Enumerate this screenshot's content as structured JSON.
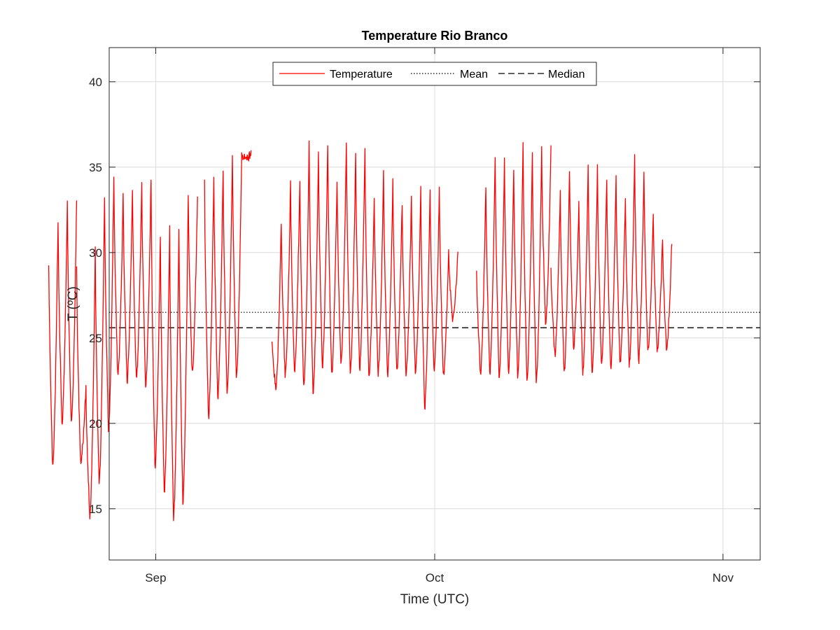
{
  "chart_data": {
    "type": "line",
    "title": "Temperature Rio Branco",
    "xlabel": "Time (UTC)",
    "ylabel": "T (ºC)",
    "x_unit": "date",
    "xlim": [
      "2015-08-27",
      "2015-11-05"
    ],
    "ylim": [
      12,
      42
    ],
    "x_ticks": [
      {
        "date": "2015-09-01",
        "label": "Sep"
      },
      {
        "date": "2015-10-01",
        "label": "Oct"
      },
      {
        "date": "2015-11-01",
        "label": "Nov"
      }
    ],
    "y_ticks": [
      15,
      20,
      25,
      30,
      35,
      40
    ],
    "grid": true,
    "legend": {
      "position": "top-center",
      "orientation": "horizontal",
      "entries": [
        "Temperature",
        "Mean",
        "Median"
      ]
    },
    "reference_lines": [
      {
        "name": "Mean",
        "value": 26.5,
        "style": "dotted",
        "color": "#000000"
      },
      {
        "name": "Median",
        "value": 25.6,
        "style": "dashed",
        "color": "#000000"
      }
    ],
    "series": [
      {
        "name": "Temperature",
        "color": "#ff0000",
        "segments": [
          {
            "start": "2015-08-20T12:00",
            "daily": [
              [
                29.5,
                17.3
              ],
              [
                32.0,
                19.9
              ],
              [
                33.0,
                19.9
              ]
            ]
          },
          {
            "start": "2015-08-23T12:00",
            "daily": [
              [
                29.0,
                17.7
              ],
              [
                22.0,
                14.4
              ],
              [
                30.3,
                16.4
              ],
              [
                33.3,
                19.6
              ],
              [
                34.5,
                22.7
              ],
              [
                33.4,
                22.4
              ],
              [
                33.8,
                22.5
              ],
              [
                34.0,
                22.3
              ],
              [
                34.4,
                17.4
              ],
              [
                31.0,
                16.0
              ],
              [
                31.5,
                14.4
              ],
              [
                31.6,
                15.3
              ],
              [
                33.5,
                22.9
              ]
            ]
          },
          {
            "start": "2015-09-06T06:00",
            "daily": [
              [
                34.3,
                20.3
              ],
              [
                34.6,
                21.4
              ],
              [
                35.0,
                21.7
              ],
              [
                35.8,
                22.6
              ],
              [
                35.9,
                35.4
              ]
            ]
          },
          {
            "start": "2015-09-13T12:00",
            "daily": [
              [
                25.0,
                22.0
              ],
              [
                31.8,
                22.7
              ],
              [
                34.1,
                22.9
              ],
              [
                34.4,
                22.0
              ],
              [
                36.3,
                21.7
              ],
              [
                35.8,
                23.3
              ],
              [
                36.5,
                22.8
              ],
              [
                34.2,
                23.3
              ],
              [
                36.6,
                22.9
              ],
              [
                35.9,
                23.1
              ],
              [
                36.0,
                22.7
              ],
              [
                33.2,
                22.9
              ],
              [
                34.7,
                22.8
              ],
              [
                34.1,
                23.1
              ],
              [
                32.9,
                22.8
              ],
              [
                33.4,
                22.8
              ],
              [
                33.7,
                20.9
              ],
              [
                33.7,
                23.1
              ],
              [
                33.6,
                22.8
              ],
              [
                30.0,
                26.0
              ]
            ]
          },
          {
            "start": "2015-10-05T12:00",
            "daily": [
              [
                29.0,
                22.9
              ],
              [
                34.0,
                22.9
              ],
              [
                35.6,
                22.7
              ],
              [
                35.4,
                23.0
              ],
              [
                35.0,
                22.7
              ],
              [
                36.2,
                22.5
              ],
              [
                35.7,
                22.3
              ],
              [
                36.1,
                25.7
              ]
            ]
          },
          {
            "start": "2015-10-13T12:00",
            "daily": [
              [
                29.0,
                24.0
              ],
              [
                33.5,
                22.9
              ],
              [
                34.9,
                24.3
              ],
              [
                32.8,
                23.0
              ],
              [
                34.9,
                23.0
              ],
              [
                35.0,
                23.3
              ],
              [
                34.3,
                23.1
              ],
              [
                34.5,
                23.4
              ],
              [
                33.2,
                23.4
              ],
              [
                35.6,
                23.6
              ],
              [
                34.8,
                24.1
              ],
              [
                32.4,
                24.3
              ],
              [
                30.7,
                24.4
              ]
            ]
          }
        ]
      }
    ]
  }
}
